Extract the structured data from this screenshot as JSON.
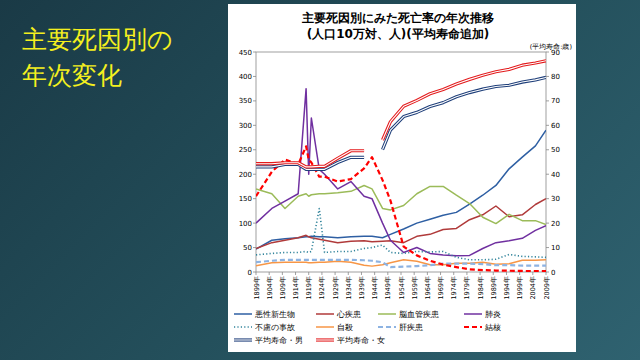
{
  "slide": {
    "title_lines": [
      "主要死因別の",
      "年次変化"
    ]
  },
  "chart_data": {
    "type": "line",
    "title": "主要死因別にみた死亡率の年次推移",
    "subtitle": "(人口10万対、人)(平均寿命追加)",
    "y2_label": "(平均寿命:歳)",
    "x": [
      1899,
      1905,
      1910,
      1915,
      1918,
      1919,
      1920,
      1923,
      1925,
      1930,
      1935,
      1940,
      1943,
      1947,
      1950,
      1955,
      1960,
      1965,
      1970,
      1975,
      1980,
      1985,
      1990,
      1995,
      2000,
      2005,
      2009
    ],
    "xlim": [
      1899,
      2009
    ],
    "xticks": [
      {
        "value": 1899,
        "label": "1899年"
      },
      {
        "value": 1904,
        "label": "1904年"
      },
      {
        "value": 1909,
        "label": "1909年"
      },
      {
        "value": 1914,
        "label": "1914年"
      },
      {
        "value": 1919,
        "label": "1919年"
      },
      {
        "value": 1924,
        "label": "1924年"
      },
      {
        "value": 1929,
        "label": "1929年"
      },
      {
        "value": 1934,
        "label": "1934年"
      },
      {
        "value": 1939,
        "label": "1939年"
      },
      {
        "value": 1944,
        "label": "1944年"
      },
      {
        "value": 1949,
        "label": "1949年"
      },
      {
        "value": 1954,
        "label": "1954年"
      },
      {
        "value": 1959,
        "label": "1959年"
      },
      {
        "value": 1964,
        "label": "1964年"
      },
      {
        "value": 1969,
        "label": "1969年"
      },
      {
        "value": 1974,
        "label": "1974年"
      },
      {
        "value": 1979,
        "label": "1979年"
      },
      {
        "value": 1984,
        "label": "1984年"
      },
      {
        "value": 1989,
        "label": "1989年"
      },
      {
        "value": 1994,
        "label": "1994年"
      },
      {
        "value": 1999,
        "label": "1999年"
      },
      {
        "value": 2004,
        "label": "2004年"
      },
      {
        "value": 2009,
        "label": "2009年"
      }
    ],
    "ylim": [
      0,
      450
    ],
    "yticks": [
      0,
      50,
      100,
      150,
      200,
      250,
      300,
      350,
      400,
      450
    ],
    "y2lim": [
      0,
      90
    ],
    "y2ticks": [
      0,
      10,
      20,
      30,
      40,
      50,
      60,
      70,
      80,
      90
    ],
    "grid": false,
    "legend": "bottom",
    "series": [
      {
        "name": "悪性新生物",
        "color": "#2e5fa3",
        "line_style": "solid",
        "values": [
          47,
          65,
          68,
          70,
          72,
          72,
          73,
          72,
          72,
          70,
          72,
          73,
          73,
          70,
          77,
          88,
          100,
          108,
          116,
          122,
          139,
          157,
          177,
          211,
          235,
          258,
          290
        ]
      },
      {
        "name": "心疾患",
        "color": "#b03a3a",
        "line_style": "solid",
        "values": [
          48,
          60,
          65,
          70,
          75,
          72,
          70,
          67,
          65,
          60,
          63,
          64,
          62,
          63,
          64,
          60,
          73,
          77,
          87,
          89,
          107,
          117,
          135,
          113,
          117,
          138,
          150
        ]
      },
      {
        "name": "脳血管疾患",
        "color": "#9bbb59",
        "line_style": "solid",
        "values": [
          170,
          160,
          130,
          155,
          160,
          155,
          158,
          160,
          160,
          162,
          165,
          177,
          170,
          130,
          127,
          136,
          160,
          175,
          175,
          157,
          140,
          112,
          99,
          118,
          105,
          105,
          97
        ]
      },
      {
        "name": "肺炎",
        "color": "#7030a0",
        "line_style": "solid",
        "values": [
          100,
          130,
          145,
          160,
          375,
          200,
          315,
          210,
          200,
          170,
          185,
          155,
          150,
          100,
          65,
          40,
          50,
          38,
          35,
          33,
          34,
          48,
          60,
          64,
          69,
          85,
          95
        ]
      },
      {
        "name": "不慮の事故",
        "color": "#31849b",
        "line_style": "dotted",
        "values": [
          35,
          38,
          40,
          40,
          42,
          40,
          42,
          130,
          40,
          42,
          42,
          48,
          50,
          55,
          40,
          38,
          42,
          41,
          42,
          30,
          25,
          25,
          26,
          36,
          32,
          31,
          30
        ]
      },
      {
        "name": "自殺",
        "color": "#f79646",
        "line_style": "solid",
        "values": [
          13,
          19,
          20,
          20,
          20,
          19,
          19,
          20,
          20,
          22,
          20,
          14,
          12,
          15,
          19,
          25,
          22,
          15,
          15,
          18,
          18,
          20,
          16,
          17,
          24,
          24,
          25
        ]
      },
      {
        "name": "肝疾患",
        "color": "#8db3e2",
        "line_style": "dashed",
        "values": [
          20,
          23,
          25,
          25,
          25,
          25,
          25,
          25,
          25,
          25,
          25,
          24,
          23,
          20,
          10,
          11,
          12,
          14,
          17,
          17,
          17,
          16,
          14,
          14,
          13,
          13,
          13
        ]
      },
      {
        "name": "結核",
        "color": "#ff0000",
        "line_style": "dashed",
        "values": [
          155,
          205,
          230,
          220,
          257,
          230,
          224,
          195,
          195,
          185,
          190,
          212,
          235,
          188,
          146,
          52,
          34,
          23,
          15,
          10,
          5.5,
          3.9,
          3,
          2.6,
          2.1,
          1.8,
          1.7
        ]
      },
      {
        "name": "平均寿命・男",
        "color": "#1f3f7a",
        "line_style": "double",
        "axis": "y2",
        "values": [
          43,
          43,
          44,
          44,
          42,
          42,
          42,
          42,
          42,
          44.8,
          46.9,
          46.9,
          null,
          50.1,
          58,
          63.6,
          65.3,
          67.7,
          69.3,
          71.7,
          73.4,
          74.8,
          75.9,
          76.4,
          77.7,
          78.6,
          79.6
        ]
      },
      {
        "name": "平均寿命・女",
        "color": "#e31a1c",
        "line_style": "double",
        "axis": "y2",
        "values": [
          44.3,
          44.3,
          44.7,
          44.7,
          43,
          43,
          43,
          43.2,
          43.2,
          46.5,
          49.6,
          49.6,
          null,
          54,
          61.5,
          67.8,
          70.2,
          72.9,
          74.7,
          76.9,
          78.8,
          80.5,
          81.9,
          82.9,
          84.6,
          85.5,
          86.4
        ]
      }
    ]
  }
}
